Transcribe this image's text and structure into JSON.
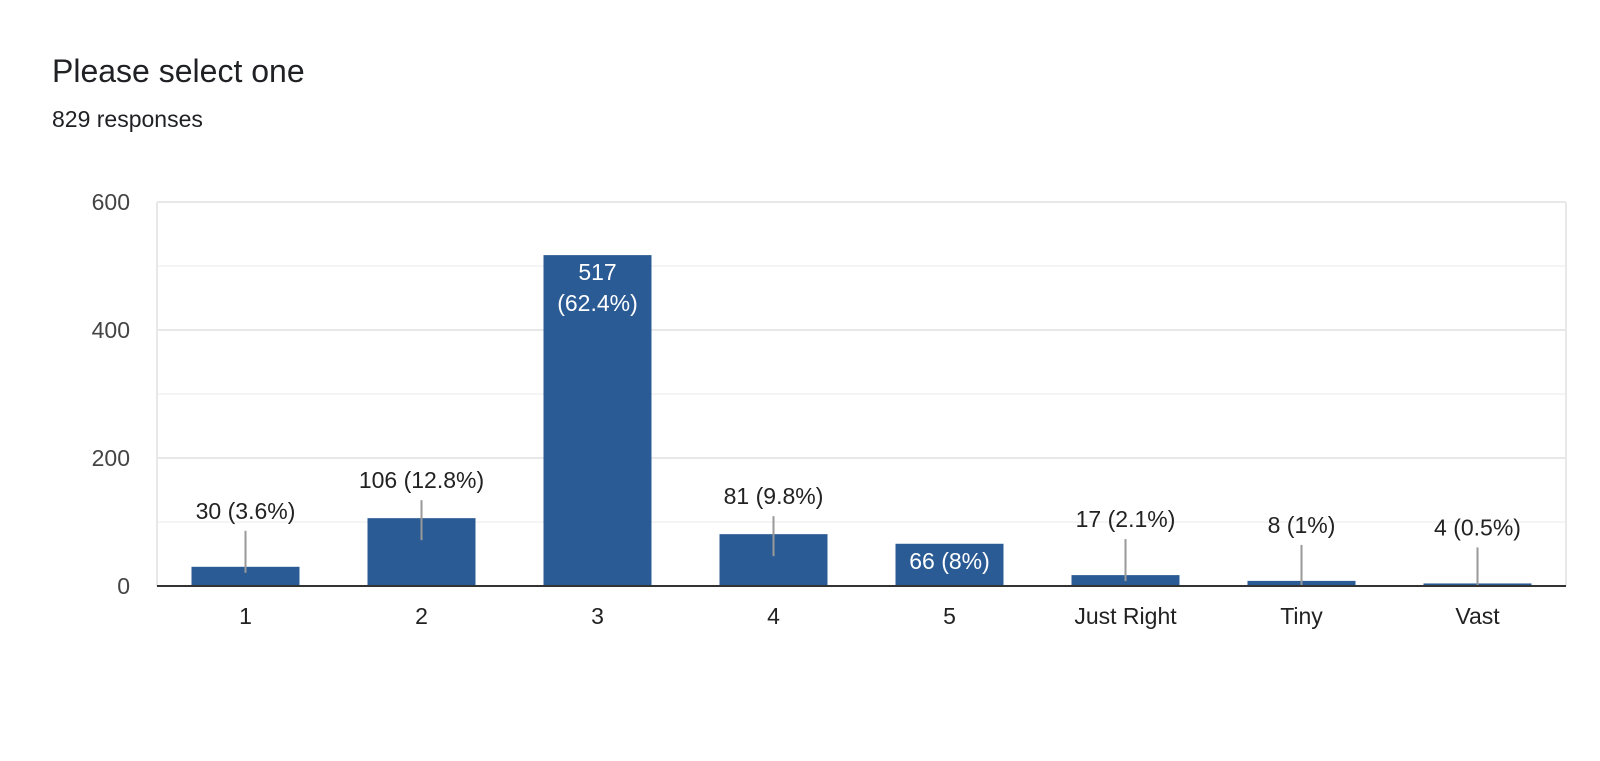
{
  "header": {
    "title": "Please select one",
    "subtitle": "829 responses"
  },
  "colors": {
    "bar": "#2a5b94",
    "grid": "#e8e8e8",
    "axis": "#333333",
    "label_outside": "#222222",
    "label_inside": "#ffffff"
  },
  "chart_data": {
    "type": "bar",
    "title": "Please select one",
    "subtitle": "829 responses",
    "categories": [
      "1",
      "2",
      "3",
      "4",
      "5",
      "Just Right",
      "Tiny",
      "Vast"
    ],
    "values": [
      30,
      106,
      517,
      81,
      66,
      17,
      8,
      4
    ],
    "data_labels": [
      "30 (3.6%)",
      "106 (12.8%)",
      "517 (62.4%)",
      "81 (9.8%)",
      "66 (8%)",
      "17 (2.1%)",
      "8 (1%)",
      "4 (0.5%)"
    ],
    "ylim": [
      0,
      600
    ],
    "yticks": [
      0,
      200,
      400,
      600
    ],
    "ytick_labels": [
      "0",
      "200",
      "400",
      "600"
    ],
    "minor_gridlines": [
      100,
      300,
      500
    ],
    "xlabel": "",
    "ylabel": "",
    "grid": true,
    "legend": "none"
  }
}
